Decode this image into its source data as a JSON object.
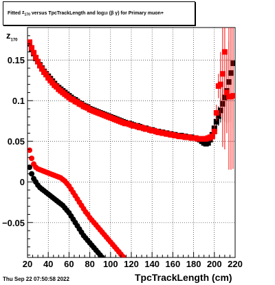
{
  "title": {
    "prefix": "Fitted",
    "symbol": "z",
    "symbol_sub": "170",
    "middle": "versus TpcTrackLength and log",
    "log_sub": "10",
    "beta_gamma": "(β γ)",
    "suffix": "for Primary muon+"
  },
  "footer": "Thu Sep 22 07:50:58 2022",
  "axis_labels": {
    "x": "TpcTrackLength (cm)",
    "y_symbol": "z",
    "y_sub": "170"
  },
  "colors": {
    "black": "#000000",
    "red": "#ff0000",
    "grid": "#000000"
  },
  "chart_data": {
    "type": "scatter",
    "xlim": [
      20,
      220
    ],
    "ylim": [
      -0.093,
      0.19
    ],
    "x_ticks": [
      20,
      40,
      60,
      80,
      100,
      120,
      140,
      160,
      180,
      200,
      220
    ],
    "x_tick_labels": [
      "20",
      "40",
      "60",
      "80",
      "100",
      "120",
      "140",
      "160",
      "180",
      "200",
      "220"
    ],
    "y_ticks": [
      -0.05,
      0,
      0.05,
      0.1,
      0.15
    ],
    "y_tick_labels": [
      "−0.05",
      "0",
      "0.05",
      "0.1",
      "0.15"
    ],
    "grid": true,
    "series": [
      {
        "color": "black",
        "marker": "square",
        "x": [
          22,
          24,
          26,
          28,
          30,
          32,
          34,
          36,
          38,
          40,
          42,
          44,
          46,
          48,
          50,
          52,
          54,
          56,
          58,
          60,
          62,
          64,
          66,
          68,
          70,
          72,
          74,
          76,
          78,
          80,
          82,
          84,
          86,
          88,
          90,
          92,
          94,
          96,
          98,
          100,
          102,
          104,
          106,
          108,
          110,
          112,
          114,
          116,
          118,
          120,
          122,
          124,
          126,
          128,
          130,
          132,
          134,
          136,
          138,
          140,
          142,
          144,
          146,
          148,
          150,
          152,
          154,
          156,
          158,
          160,
          162,
          164,
          166,
          168,
          170,
          172,
          174,
          176,
          178,
          180,
          182,
          184,
          186,
          188,
          190,
          192,
          194,
          196,
          198,
          200,
          202,
          204,
          206,
          208,
          210,
          212,
          214,
          216,
          218
        ],
        "y": [
          0.17,
          0.163,
          0.158,
          0.152,
          0.148,
          0.144,
          0.14,
          0.136,
          0.133,
          0.13,
          0.127,
          0.124,
          0.121,
          0.118,
          0.116,
          0.114,
          0.112,
          0.11,
          0.108,
          0.106,
          0.104,
          0.102,
          0.101,
          0.099,
          0.097,
          0.096,
          0.094,
          0.093,
          0.092,
          0.09,
          0.089,
          0.088,
          0.087,
          0.086,
          0.085,
          0.084,
          0.083,
          0.082,
          0.081,
          0.08,
          0.079,
          0.078,
          0.077,
          0.076,
          0.075,
          0.074,
          0.073,
          0.072,
          0.072,
          0.071,
          0.07,
          0.069,
          0.069,
          0.068,
          0.067,
          0.066,
          0.066,
          0.065,
          0.064,
          0.064,
          0.063,
          0.062,
          0.062,
          0.061,
          0.061,
          0.06,
          0.06,
          0.059,
          0.059,
          0.058,
          0.058,
          0.057,
          0.057,
          0.057,
          0.056,
          0.056,
          0.055,
          0.055,
          0.055,
          0.054,
          0.054,
          0.053,
          0.052,
          0.05,
          0.048,
          0.047,
          0.048,
          0.052,
          0.058,
          0.066,
          0.074,
          0.081,
          0.088,
          0.096,
          0.104,
          0.112,
          0.123,
          0.134,
          0.146
        ],
        "err": [
          0.002,
          0.002,
          0.002,
          0.002,
          0.002,
          0.002,
          0.002,
          0.002,
          0.002,
          0.002,
          0.002,
          0.002,
          0.002,
          0.002,
          0.002,
          0.002,
          0.002,
          0.002,
          0.002,
          0.002,
          0.002,
          0.002,
          0.002,
          0.002,
          0.002,
          0.002,
          0.002,
          0.002,
          0.002,
          0.002,
          0.002,
          0.002,
          0.002,
          0.002,
          0.002,
          0.002,
          0.002,
          0.002,
          0.002,
          0.002,
          0.002,
          0.002,
          0.002,
          0.002,
          0.002,
          0.002,
          0.002,
          0.002,
          0.002,
          0.002,
          0.002,
          0.002,
          0.002,
          0.002,
          0.002,
          0.002,
          0.002,
          0.002,
          0.002,
          0.002,
          0.002,
          0.002,
          0.002,
          0.002,
          0.002,
          0.002,
          0.002,
          0.002,
          0.002,
          0.002,
          0.002,
          0.002,
          0.002,
          0.002,
          0.002,
          0.002,
          0.002,
          0.002,
          0.002,
          0.002,
          0.002,
          0.002,
          0.003,
          0.003,
          0.003,
          0.004,
          0.004,
          0.005,
          0.006,
          0.008,
          0.01,
          0.012,
          0.015,
          0.02,
          0.03,
          0.04,
          0.05,
          0.06,
          0.08
        ]
      },
      {
        "color": "red",
        "marker": "square",
        "x": [
          22,
          24,
          26,
          28,
          30,
          32,
          34,
          36,
          38,
          40,
          42,
          44,
          46,
          48,
          50,
          52,
          54,
          56,
          58,
          60,
          62,
          64,
          66,
          68,
          70,
          72,
          74,
          76,
          78,
          80,
          82,
          84,
          86,
          88,
          90,
          92,
          94,
          96,
          98,
          100,
          102,
          104,
          106,
          108,
          110,
          112,
          114,
          116,
          118,
          120,
          122,
          124,
          126,
          128,
          130,
          132,
          134,
          136,
          138,
          140,
          142,
          144,
          146,
          148,
          150,
          152,
          154,
          156,
          158,
          160,
          162,
          164,
          166,
          168,
          170,
          172,
          174,
          176,
          178,
          180,
          182,
          184,
          186,
          188,
          190,
          192,
          194,
          196,
          198,
          200,
          202,
          204,
          206,
          208,
          210,
          212,
          214,
          216,
          218
        ],
        "y": [
          0.172,
          0.165,
          0.159,
          0.153,
          0.148,
          0.143,
          0.139,
          0.135,
          0.132,
          0.128,
          0.125,
          0.122,
          0.119,
          0.117,
          0.114,
          0.112,
          0.11,
          0.108,
          0.106,
          0.104,
          0.102,
          0.101,
          0.099,
          0.098,
          0.096,
          0.095,
          0.093,
          0.092,
          0.091,
          0.089,
          0.088,
          0.087,
          0.086,
          0.085,
          0.084,
          0.083,
          0.082,
          0.081,
          0.08,
          0.079,
          0.078,
          0.077,
          0.076,
          0.075,
          0.074,
          0.073,
          0.072,
          0.072,
          0.071,
          0.07,
          0.069,
          0.069,
          0.068,
          0.067,
          0.067,
          0.066,
          0.065,
          0.065,
          0.064,
          0.063,
          0.063,
          0.062,
          0.061,
          0.061,
          0.06,
          0.06,
          0.059,
          0.059,
          0.058,
          0.058,
          0.057,
          0.057,
          0.056,
          0.056,
          0.056,
          0.055,
          0.055,
          0.055,
          0.054,
          0.054,
          0.054,
          0.053,
          0.053,
          0.053,
          0.053,
          0.053,
          0.054,
          0.055,
          0.056,
          0.062,
          0.085,
          0.118,
          0.12,
          0.133,
          0.16,
          0.11,
          0.105,
          0.105,
          0.106
        ],
        "err": [
          0.002,
          0.002,
          0.002,
          0.002,
          0.002,
          0.002,
          0.002,
          0.002,
          0.002,
          0.002,
          0.002,
          0.002,
          0.002,
          0.002,
          0.002,
          0.002,
          0.002,
          0.002,
          0.002,
          0.002,
          0.002,
          0.002,
          0.002,
          0.002,
          0.002,
          0.002,
          0.002,
          0.002,
          0.002,
          0.002,
          0.002,
          0.002,
          0.002,
          0.002,
          0.002,
          0.002,
          0.002,
          0.002,
          0.002,
          0.002,
          0.002,
          0.002,
          0.002,
          0.002,
          0.002,
          0.002,
          0.002,
          0.002,
          0.002,
          0.002,
          0.002,
          0.002,
          0.002,
          0.002,
          0.002,
          0.002,
          0.002,
          0.002,
          0.002,
          0.002,
          0.002,
          0.002,
          0.002,
          0.002,
          0.002,
          0.002,
          0.002,
          0.002,
          0.002,
          0.002,
          0.002,
          0.002,
          0.002,
          0.002,
          0.002,
          0.002,
          0.002,
          0.002,
          0.002,
          0.002,
          0.002,
          0.002,
          0.003,
          0.003,
          0.003,
          0.004,
          0.004,
          0.005,
          0.006,
          0.008,
          0.01,
          0.015,
          0.04,
          0.09,
          0.12,
          0.05,
          0.09,
          0.09,
          0.09
        ]
      },
      {
        "color": "black",
        "marker": "circle",
        "x": [
          22,
          24,
          26,
          28,
          30,
          32,
          34,
          36,
          38,
          40,
          42,
          44,
          46,
          48,
          50,
          52,
          54,
          56,
          58,
          60,
          62,
          64,
          66,
          68,
          70,
          72,
          74,
          76,
          78,
          80,
          82,
          84,
          86,
          88,
          90,
          92,
          94,
          96,
          98,
          100,
          102
        ],
        "y": [
          0.018,
          0.01,
          0.004,
          0.0,
          -0.004,
          -0.007,
          -0.009,
          -0.011,
          -0.013,
          -0.015,
          -0.017,
          -0.019,
          -0.021,
          -0.023,
          -0.025,
          -0.027,
          -0.029,
          -0.032,
          -0.035,
          -0.038,
          -0.042,
          -0.046,
          -0.05,
          -0.054,
          -0.058,
          -0.062,
          -0.066,
          -0.069,
          -0.072,
          -0.075,
          -0.078,
          -0.081,
          -0.084,
          -0.087,
          -0.09,
          -0.093,
          -0.096,
          -0.099,
          -0.102,
          -0.105,
          -0.108
        ]
      },
      {
        "color": "red",
        "marker": "circle",
        "x": [
          22,
          24,
          26,
          28,
          30,
          32,
          34,
          36,
          38,
          40,
          42,
          44,
          46,
          48,
          50,
          52,
          54,
          56,
          58,
          60,
          62,
          64,
          66,
          68,
          70,
          72,
          74,
          76,
          78,
          80,
          82,
          84,
          86,
          88,
          90,
          92,
          94,
          96,
          98,
          100,
          102,
          104,
          106,
          108,
          110,
          112,
          114,
          116,
          118,
          120
        ],
        "y": [
          0.039,
          0.029,
          0.022,
          0.018,
          0.016,
          0.015,
          0.014,
          0.013,
          0.012,
          0.011,
          0.01,
          0.009,
          0.008,
          0.007,
          0.006,
          0.005,
          0.003,
          0.001,
          -0.002,
          -0.005,
          -0.009,
          -0.013,
          -0.017,
          -0.021,
          -0.025,
          -0.029,
          -0.033,
          -0.037,
          -0.04,
          -0.044,
          -0.047,
          -0.05,
          -0.053,
          -0.056,
          -0.059,
          -0.062,
          -0.065,
          -0.068,
          -0.071,
          -0.074,
          -0.077,
          -0.08,
          -0.083,
          -0.086,
          -0.089,
          -0.092,
          -0.095,
          -0.098,
          -0.101,
          -0.104
        ]
      }
    ]
  }
}
